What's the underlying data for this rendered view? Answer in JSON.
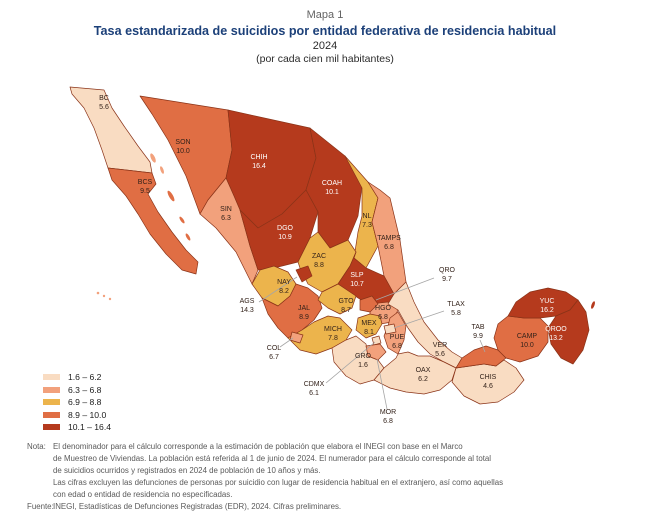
{
  "header": {
    "kicker": "Mapa 1",
    "title": "Tasa estandarizada de suicidios por entidad federativa de residencia habitual",
    "year": "2024",
    "subtitle": "(por cada cien mil habitantes)"
  },
  "legend": {
    "items": [
      {
        "label": "1.6 – 6.2",
        "color": "#f9dcc2"
      },
      {
        "label": "6.3 – 6.8",
        "color": "#f2a17c"
      },
      {
        "label": "6.9 – 8.8",
        "color": "#ecb44c"
      },
      {
        "label": "8.9 – 10.0",
        "color": "#e06e44"
      },
      {
        "label": "10.1 – 16.4",
        "color": "#b53a1d"
      }
    ]
  },
  "chart_data": {
    "type": "choropleth",
    "title": "Tasa estandarizada de suicidios por entidad federativa de residencia habitual",
    "year": "2024",
    "unit_note": "(por cada cien mil habitantes)",
    "bins": [
      {
        "range": "1.6 – 6.2",
        "min": 1.6,
        "max": 6.2,
        "color": "#f9dcc2"
      },
      {
        "range": "6.3 – 6.8",
        "min": 6.3,
        "max": 6.8,
        "color": "#f2a17c"
      },
      {
        "range": "6.9 – 8.8",
        "min": 6.9,
        "max": 8.8,
        "color": "#ecb44c"
      },
      {
        "range": "8.9 – 10.0",
        "min": 8.9,
        "max": 10.0,
        "color": "#e06e44"
      },
      {
        "range": "10.1 – 16.4",
        "min": 10.1,
        "max": 16.4,
        "color": "#b53a1d"
      }
    ],
    "states": [
      {
        "abbr": "BC",
        "value": 5.6,
        "bin": 1
      },
      {
        "abbr": "BCS",
        "value": 9.5,
        "bin": 4
      },
      {
        "abbr": "SON",
        "value": 10.0,
        "bin": 4
      },
      {
        "abbr": "CHIH",
        "value": 16.4,
        "bin": 5
      },
      {
        "abbr": "COAH",
        "value": 10.1,
        "bin": 5
      },
      {
        "abbr": "NL",
        "value": 7.3,
        "bin": 3
      },
      {
        "abbr": "TAMPS",
        "value": 6.8,
        "bin": 2
      },
      {
        "abbr": "SIN",
        "value": 6.3,
        "bin": 2
      },
      {
        "abbr": "DGO",
        "value": 10.9,
        "bin": 5
      },
      {
        "abbr": "ZAC",
        "value": 8.8,
        "bin": 3
      },
      {
        "abbr": "SLP",
        "value": 10.7,
        "bin": 5
      },
      {
        "abbr": "NAY",
        "value": 8.2,
        "bin": 3
      },
      {
        "abbr": "JAL",
        "value": 8.9,
        "bin": 4
      },
      {
        "abbr": "GTO",
        "value": 8.7,
        "bin": 3
      },
      {
        "abbr": "HGO",
        "value": 6.8,
        "bin": 2
      },
      {
        "abbr": "MEX",
        "value": 8.1,
        "bin": 3
      },
      {
        "abbr": "MICH",
        "value": 7.8,
        "bin": 3
      },
      {
        "abbr": "VER",
        "value": 5.6,
        "bin": 1
      },
      {
        "abbr": "PUE",
        "value": 6.8,
        "bin": 2
      },
      {
        "abbr": "GRO",
        "value": 1.6,
        "bin": 1
      },
      {
        "abbr": "OAX",
        "value": 6.2,
        "bin": 1
      },
      {
        "abbr": "CHIS",
        "value": 4.6,
        "bin": 1
      },
      {
        "abbr": "TAB",
        "value": 9.9,
        "bin": 4
      },
      {
        "abbr": "CAMP",
        "value": 10.0,
        "bin": 4
      },
      {
        "abbr": "YUC",
        "value": 16.2,
        "bin": 5
      },
      {
        "abbr": "QROO",
        "value": 13.2,
        "bin": 5
      },
      {
        "abbr": "AGS",
        "value": 14.3,
        "bin": 5
      },
      {
        "abbr": "QRO",
        "value": 9.7,
        "bin": 4
      },
      {
        "abbr": "TLAX",
        "value": 5.8,
        "bin": 1
      },
      {
        "abbr": "CDMX",
        "value": 6.1,
        "bin": 1
      },
      {
        "abbr": "MOR",
        "value": 6.8,
        "bin": 2
      },
      {
        "abbr": "COL",
        "value": 6.7,
        "bin": 2
      }
    ]
  },
  "notes": {
    "label": "Nota:",
    "lines": [
      "El denominador para el cálculo corresponde a la estimación de población que elabora el INEGI con base en el Marco",
      "de Muestreo de Viviendas. La población está referida al 1 de junio de 2024. El numerador para el cálculo corresponde al total",
      "de suicidios ocurridos y registrados en 2024 de población de 10 años y más.",
      "Las cifras excluyen las defunciones de personas por suicidio con lugar de residencia habitual en el extranjero, así como aquellas",
      "con edad o entidad de residencia no especificadas."
    ]
  },
  "source": {
    "label": "Fuente:",
    "text": "INEGI, Estadísticas de Defunciones Registradas (EDR), 2024. Cifras preliminares."
  }
}
